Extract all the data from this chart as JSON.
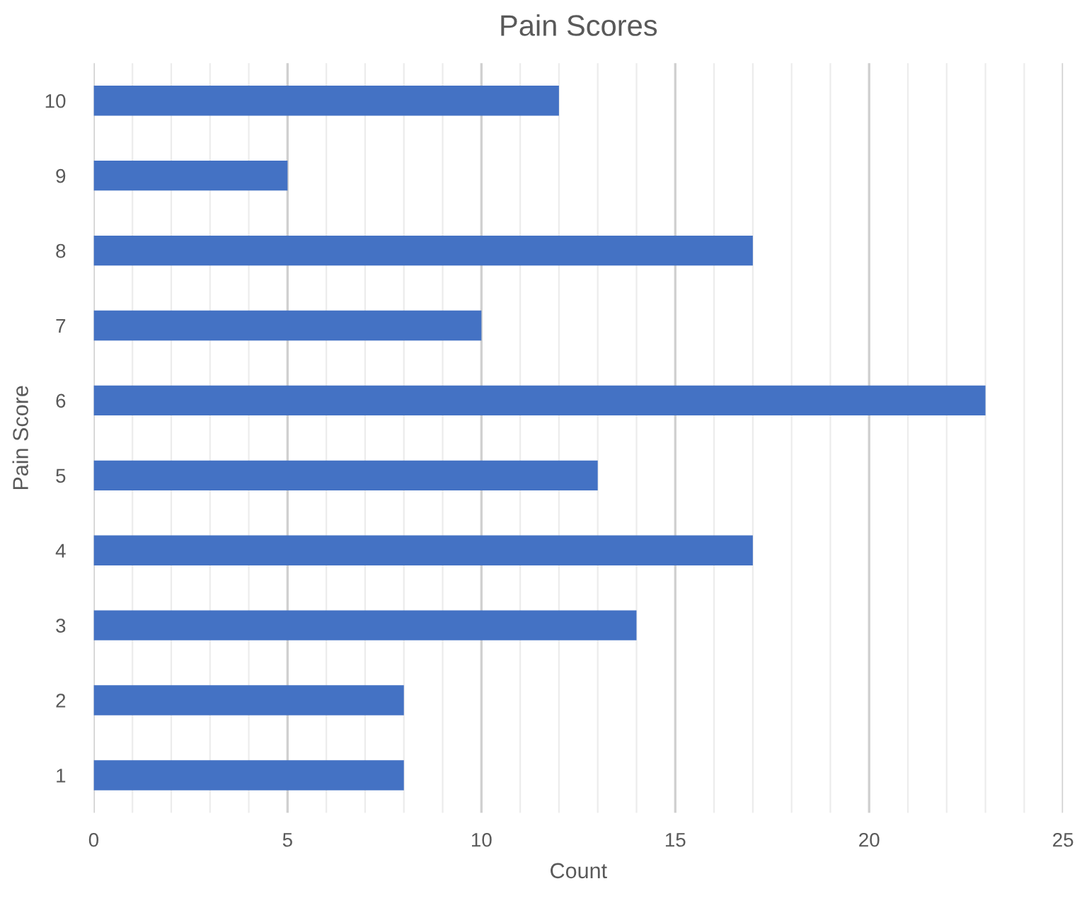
{
  "chart_data": {
    "type": "bar",
    "orientation": "horizontal",
    "title": "Pain Scores",
    "xlabel": "Count",
    "ylabel": "Pain Score",
    "categories": [
      "10",
      "9",
      "8",
      "7",
      "6",
      "5",
      "4",
      "3",
      "2",
      "1"
    ],
    "values": [
      12,
      5,
      17,
      10,
      23,
      13,
      17,
      14,
      8,
      8
    ],
    "color": "#4472c4",
    "xlim": [
      0,
      25
    ],
    "xticks": [
      0,
      {
        "value": 1,
        "label": null
      },
      {
        "value": 2,
        "label": null
      },
      {
        "value": 3,
        "label": null
      },
      {
        "value": 4,
        "label": null
      },
      5,
      {
        "value": 6,
        "label": null
      },
      {
        "value": 7,
        "label": null
      },
      {
        "value": 8,
        "label": null
      },
      {
        "value": 9,
        "label": null
      },
      10,
      {
        "value": 11,
        "label": null
      },
      {
        "value": 12,
        "label": null
      },
      {
        "value": 13,
        "label": null
      },
      {
        "value": 14,
        "label": null
      },
      15,
      {
        "value": 16,
        "label": null
      },
      {
        "value": 17,
        "label": null
      },
      {
        "value": 18,
        "label": null
      },
      {
        "value": 19,
        "label": null
      },
      20,
      {
        "value": 21,
        "label": null
      },
      {
        "value": 22,
        "label": null
      },
      {
        "value": 23,
        "label": null
      },
      {
        "value": 24,
        "label": null
      },
      25
    ],
    "grid": "x",
    "legend": false
  }
}
